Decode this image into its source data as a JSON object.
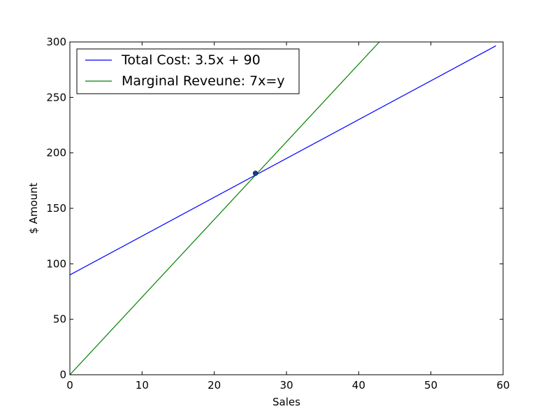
{
  "chart_data": {
    "type": "line",
    "xlabel": "Sales",
    "ylabel": "$ Amount",
    "xlim": [
      0,
      60
    ],
    "ylim": [
      0,
      300
    ],
    "xticks": [
      0,
      10,
      20,
      30,
      40,
      50,
      60
    ],
    "yticks": [
      0,
      50,
      100,
      150,
      200,
      250,
      300
    ],
    "grid": false,
    "legend_position": "top-left",
    "series": [
      {
        "name": "Total Cost: 3.5x + 90",
        "color": "#0000ff",
        "x": [
          0,
          59
        ],
        "y": [
          90,
          296.5
        ]
      },
      {
        "name": "Marginal Reveune: 7x=y",
        "color": "#008000",
        "x": [
          0,
          42.857
        ],
        "y": [
          0,
          300
        ]
      }
    ],
    "points": [
      {
        "x": 25.7,
        "y": 181.6,
        "color": "#1f3a93"
      }
    ]
  }
}
